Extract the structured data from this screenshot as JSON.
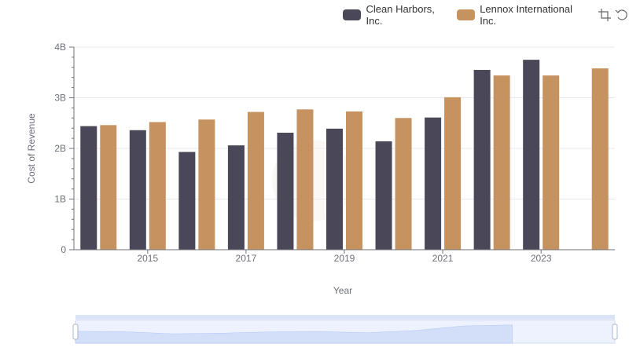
{
  "chart_data": {
    "type": "bar",
    "x": [
      2014,
      2015,
      2016,
      2017,
      2018,
      2019,
      2020,
      2021,
      2022,
      2023,
      2024
    ],
    "x_tick_labels": [
      "2015",
      "2017",
      "2019",
      "2021",
      "2023"
    ],
    "series": [
      {
        "name": "Clean Harbors, Inc.",
        "color": "#4a4858",
        "values": [
          2.44,
          2.36,
          1.93,
          2.06,
          2.31,
          2.39,
          2.14,
          2.61,
          3.55,
          3.75,
          null
        ]
      },
      {
        "name": "Lennox International Inc.",
        "color": "#c59260",
        "values": [
          2.46,
          2.52,
          2.57,
          2.72,
          2.77,
          2.73,
          2.6,
          3.01,
          3.44,
          3.44,
          3.58
        ]
      }
    ],
    "y_unit": "B",
    "ylabel": "Cost of Revenue",
    "xlabel": "Year",
    "ylim": [
      0,
      4
    ],
    "y_ticks": [
      "0",
      "1B",
      "2B",
      "3B",
      "4B"
    ],
    "grid": true,
    "legend_position": "top-right"
  },
  "toolbox": {
    "zoom_icon": "zoom-icon",
    "restore_icon": "restore-icon"
  },
  "datazoom": {
    "range": [
      0,
      100
    ]
  }
}
